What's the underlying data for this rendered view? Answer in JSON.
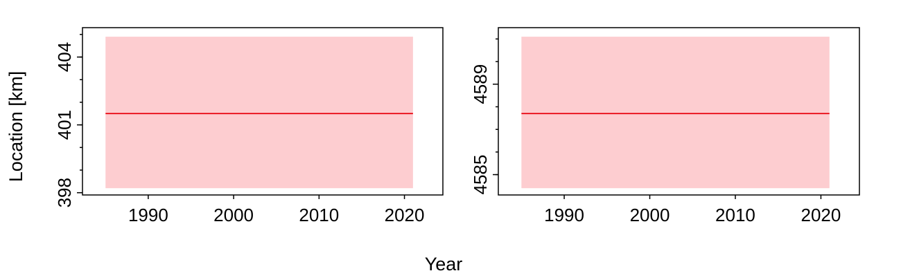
{
  "figure": {
    "ylabel": "Location [km]",
    "xlabel": "Year"
  },
  "chart_data": [
    {
      "type": "line",
      "x_range": [
        1985,
        2021
      ],
      "xlim": [
        1982.3,
        2024.5
      ],
      "x_ticks": [
        1990,
        2000,
        2010,
        2020
      ],
      "ylim": [
        397.9,
        405.3
      ],
      "y_ticks": [
        398,
        401,
        404
      ],
      "y_minor_step": 1,
      "series": [
        {
          "y": 401.5,
          "lower": 398.2,
          "upper": 404.9,
          "color": "#e8000b",
          "band_color": "#fdcdd0"
        }
      ]
    },
    {
      "type": "line",
      "x_range": [
        1985,
        2021
      ],
      "xlim": [
        1982.3,
        2024.5
      ],
      "x_ticks": [
        1990,
        2000,
        2010,
        2020
      ],
      "ylim": [
        4584.1,
        4591.5
      ],
      "y_ticks": [
        4585,
        4589
      ],
      "y_minor_step": 1,
      "series": [
        {
          "y": 4587.7,
          "lower": 4584.4,
          "upper": 4591.1,
          "color": "#e8000b",
          "band_color": "#fdcdd0"
        }
      ]
    }
  ]
}
